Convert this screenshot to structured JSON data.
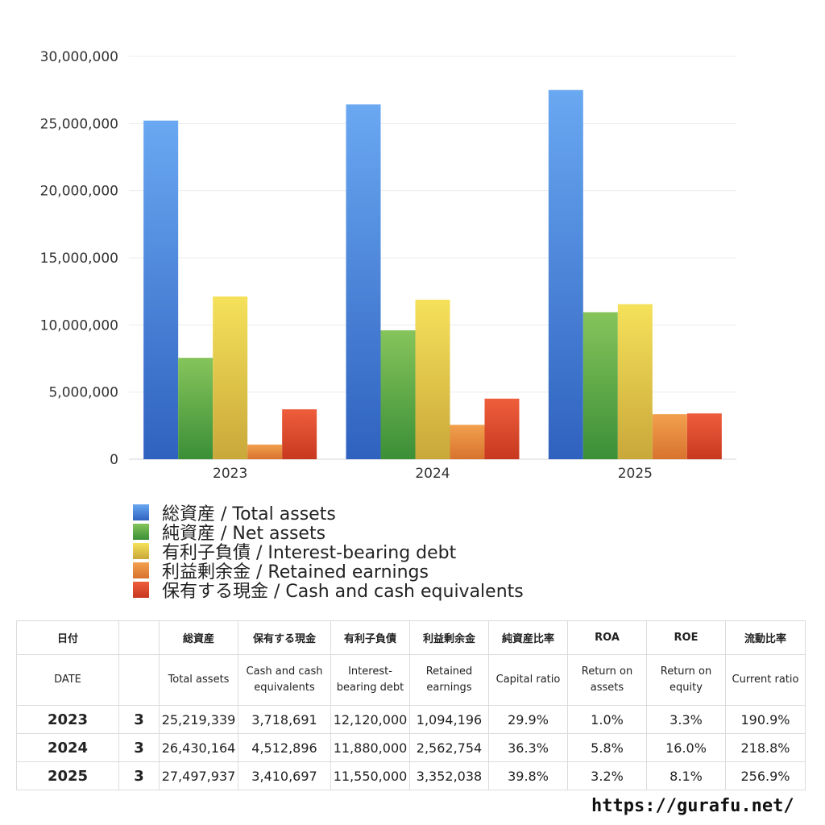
{
  "chart_data": {
    "type": "bar",
    "categories": [
      "2023",
      "2024",
      "2025"
    ],
    "series": [
      {
        "name": "総資産 / Total assets",
        "values": [
          25219339,
          26430164,
          27497937
        ],
        "color_top": "#6aa8f2",
        "color_bottom": "#2f62bf"
      },
      {
        "name": "純資産 / Net assets",
        "values": [
          7552000,
          9600000,
          10950000
        ],
        "color_top": "#86c45b",
        "color_bottom": "#3b8f37"
      },
      {
        "name": "有利子負債 / Interest-bearing debt",
        "values": [
          12120000,
          11880000,
          11550000
        ],
        "color_top": "#f5e15a",
        "color_bottom": "#c9a83a"
      },
      {
        "name": "利益剰余金 / Retained earnings",
        "values": [
          1094196,
          2562754,
          3352038
        ],
        "color_top": "#f2a04e",
        "color_bottom": "#d8732e"
      },
      {
        "name": "保有する現金 /  Cash and cash equivalents",
        "values": [
          3718691,
          4512896,
          3410697
        ],
        "color_top": "#ee5e3c",
        "color_bottom": "#c8381f"
      }
    ],
    "ylim": [
      0,
      30000000
    ],
    "yticks": [
      "0",
      "5,000,000",
      "10,000,000",
      "15,000,000",
      "20,000,000",
      "25,000,000",
      "30,000,000"
    ],
    "grid": true,
    "legend_position": "bottom-left"
  },
  "table": {
    "header_ja": [
      "日付",
      "",
      "総資産",
      "保有する現金",
      "有利子負債",
      "利益剰余金",
      "純資産比率",
      "ROA",
      "ROE",
      "流動比率"
    ],
    "header_en": [
      "DATE",
      "",
      "Total assets",
      "Cash and cash equivalents",
      "Interest-bearing debt",
      "Retained earnings",
      "Capital ratio",
      "Return on assets",
      "Return on equity",
      "Current ratio"
    ],
    "rows": [
      [
        "2023",
        "3",
        "25,219,339",
        "3,718,691",
        "12,120,000",
        "1,094,196",
        "29.9%",
        "1.0%",
        "3.3%",
        "190.9%"
      ],
      [
        "2024",
        "3",
        "26,430,164",
        "4,512,896",
        "11,880,000",
        "2,562,754",
        "36.3%",
        "5.8%",
        "16.0%",
        "218.8%"
      ],
      [
        "2025",
        "3",
        "27,497,937",
        "3,410,697",
        "11,550,000",
        "3,352,038",
        "39.8%",
        "3.2%",
        "8.1%",
        "256.9%"
      ]
    ]
  },
  "footer": {
    "url": "https://gurafu.net/"
  }
}
